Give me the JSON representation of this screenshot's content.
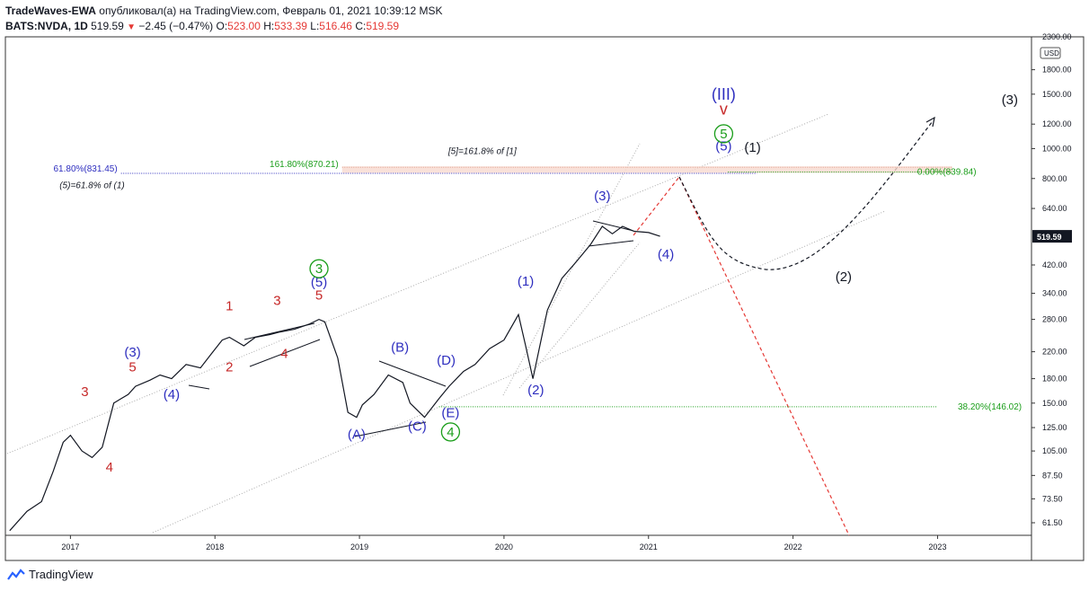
{
  "header": {
    "author": "TradeWaves-EWA",
    "published_text": "опубликовал(а) на TradingView.com, Февраль 01, 2021 10:39:12 MSK",
    "symbol": "BATS:NVDA, 1D",
    "last": "519.59",
    "change": "−2.45 (−0.47%)",
    "o_label": "O:",
    "o_value": "523.00",
    "h_label": "H:",
    "h_value": "533.39",
    "l_label": "L:",
    "l_value": "516.46",
    "c_label": "C:",
    "c_value": "519.59"
  },
  "footer": {
    "brand": "TradingView"
  },
  "colors": {
    "blue": "#2e2ebf",
    "red": "#c62828",
    "green": "#1b9e1b",
    "black": "#131722"
  },
  "chart_data": {
    "type": "line",
    "title": "BATS:NVDA, 1D",
    "y_scale": "log",
    "ylim": [
      56,
      2300
    ],
    "xlim": [
      2016.55,
      2023.65
    ],
    "currency": "USD",
    "y_ticks": [
      61.5,
      73.5,
      87.5,
      105,
      125,
      150,
      180,
      220,
      280,
      340,
      420,
      520,
      640,
      800,
      1000,
      1200,
      1500,
      1800,
      2300
    ],
    "y_tick_labels": [
      "61.50",
      "73.50",
      "87.50",
      "105.00",
      "125.00",
      "150.00",
      "180.00",
      "220.00",
      "280.00",
      "340.00",
      "420.00",
      "519.59",
      "640.00",
      "800.00",
      "1000.00",
      "1200.00",
      "1500.00",
      "1800.00",
      "2300.00"
    ],
    "x_ticks": [
      2017,
      2018,
      2019,
      2020,
      2021,
      2022,
      2023
    ],
    "x_tick_labels": [
      "2017",
      "2018",
      "2019",
      "2020",
      "2021",
      "2022",
      "2023"
    ],
    "last_price_label": "519.59",
    "price_series": {
      "x": [
        2016.58,
        2016.7,
        2016.8,
        2016.88,
        2016.95,
        2017.0,
        2017.08,
        2017.15,
        2017.22,
        2017.3,
        2017.35,
        2017.4,
        2017.45,
        2017.55,
        2017.62,
        2017.7,
        2017.8,
        2017.9,
        2017.97,
        2018.05,
        2018.1,
        2018.2,
        2018.28,
        2018.38,
        2018.45,
        2018.55,
        2018.65,
        2018.72,
        2018.76,
        2018.85,
        2018.92,
        2018.98,
        2019.02,
        2019.1,
        2019.2,
        2019.3,
        2019.35,
        2019.45,
        2019.55,
        2019.62,
        2019.72,
        2019.8,
        2019.9,
        2020.0,
        2020.1,
        2020.15,
        2020.2,
        2020.3,
        2020.4,
        2020.5,
        2020.6,
        2020.68,
        2020.75,
        2020.82,
        2020.9,
        2021.0,
        2021.08
      ],
      "values": [
        58,
        67,
        72,
        90,
        112,
        118,
        105,
        100,
        108,
        150,
        155,
        160,
        170,
        178,
        185,
        180,
        200,
        195,
        215,
        240,
        245,
        230,
        245,
        250,
        255,
        260,
        270,
        280,
        275,
        210,
        140,
        135,
        148,
        160,
        185,
        175,
        150,
        135,
        155,
        170,
        190,
        200,
        225,
        240,
        290,
        230,
        180,
        300,
        380,
        430,
        490,
        560,
        530,
        560,
        540,
        535,
        520
      ]
    },
    "fib_levels": [
      {
        "label": "61.80%(831.45)",
        "value": 831.45
      },
      {
        "label": "161.80%(870.21)",
        "value": 870.21
      },
      {
        "label": "0.00%(839.84)",
        "value": 839.84
      },
      {
        "label": "38.20%(146.02)",
        "value": 146.02
      }
    ],
    "annotations": [
      {
        "text": "[5]=161.8% of [1]",
        "x": 2019.85,
        "y": 960
      },
      {
        "text": "(5)=61.8% of (1)",
        "x": 2017.15,
        "y": 745
      }
    ],
    "wave_labels": [
      {
        "text": "3",
        "x": 2017.1,
        "y": 158,
        "color": "red"
      },
      {
        "text": "4",
        "x": 2017.27,
        "y": 90,
        "color": "red"
      },
      {
        "text": "5",
        "x": 2017.43,
        "y": 190,
        "color": "red"
      },
      {
        "text": "(3)",
        "x": 2017.43,
        "y": 212,
        "color": "blue"
      },
      {
        "text": "(4)",
        "x": 2017.7,
        "y": 155,
        "color": "blue"
      },
      {
        "text": "1",
        "x": 2018.1,
        "y": 300,
        "color": "red"
      },
      {
        "text": "2",
        "x": 2018.1,
        "y": 190,
        "color": "red"
      },
      {
        "text": "3",
        "x": 2018.43,
        "y": 312,
        "color": "red"
      },
      {
        "text": "4",
        "x": 2018.48,
        "y": 210,
        "color": "red"
      },
      {
        "text": "5",
        "x": 2018.72,
        "y": 325,
        "color": "red"
      },
      {
        "text": "(5)",
        "x": 2018.72,
        "y": 358,
        "color": "blue"
      },
      {
        "text": "3",
        "x": 2018.72,
        "y": 395,
        "color": "green",
        "circled": true
      },
      {
        "text": "(A)",
        "x": 2018.98,
        "y": 115,
        "color": "blue"
      },
      {
        "text": "(B)",
        "x": 2019.28,
        "y": 220,
        "color": "blue"
      },
      {
        "text": "(C)",
        "x": 2019.4,
        "y": 122,
        "color": "blue"
      },
      {
        "text": "(D)",
        "x": 2019.6,
        "y": 200,
        "color": "blue"
      },
      {
        "text": "(E)",
        "x": 2019.63,
        "y": 135,
        "color": "blue"
      },
      {
        "text": "4",
        "x": 2019.63,
        "y": 117,
        "color": "green",
        "circled": true
      },
      {
        "text": "(1)",
        "x": 2020.15,
        "y": 360,
        "color": "blue"
      },
      {
        "text": "(2)",
        "x": 2020.22,
        "y": 160,
        "color": "blue"
      },
      {
        "text": "(3)",
        "x": 2020.68,
        "y": 680,
        "color": "blue"
      },
      {
        "text": "(4)",
        "x": 2021.12,
        "y": 440,
        "color": "blue"
      },
      {
        "text": "(5)",
        "x": 2021.52,
        "y": 985,
        "color": "blue"
      },
      {
        "text": "(1)",
        "x": 2021.72,
        "y": 975,
        "color": "black"
      },
      {
        "text": "5",
        "x": 2021.52,
        "y": 1080,
        "color": "green",
        "circled": true
      },
      {
        "text": "v",
        "x": 2021.52,
        "y": 1290,
        "color": "red"
      },
      {
        "text": "(III)",
        "x": 2021.52,
        "y": 1440,
        "color": "blue"
      },
      {
        "text": "(2)",
        "x": 2022.35,
        "y": 372,
        "color": "black"
      },
      {
        "text": "(3)",
        "x": 2023.5,
        "y": 1390,
        "color": "black"
      }
    ]
  }
}
